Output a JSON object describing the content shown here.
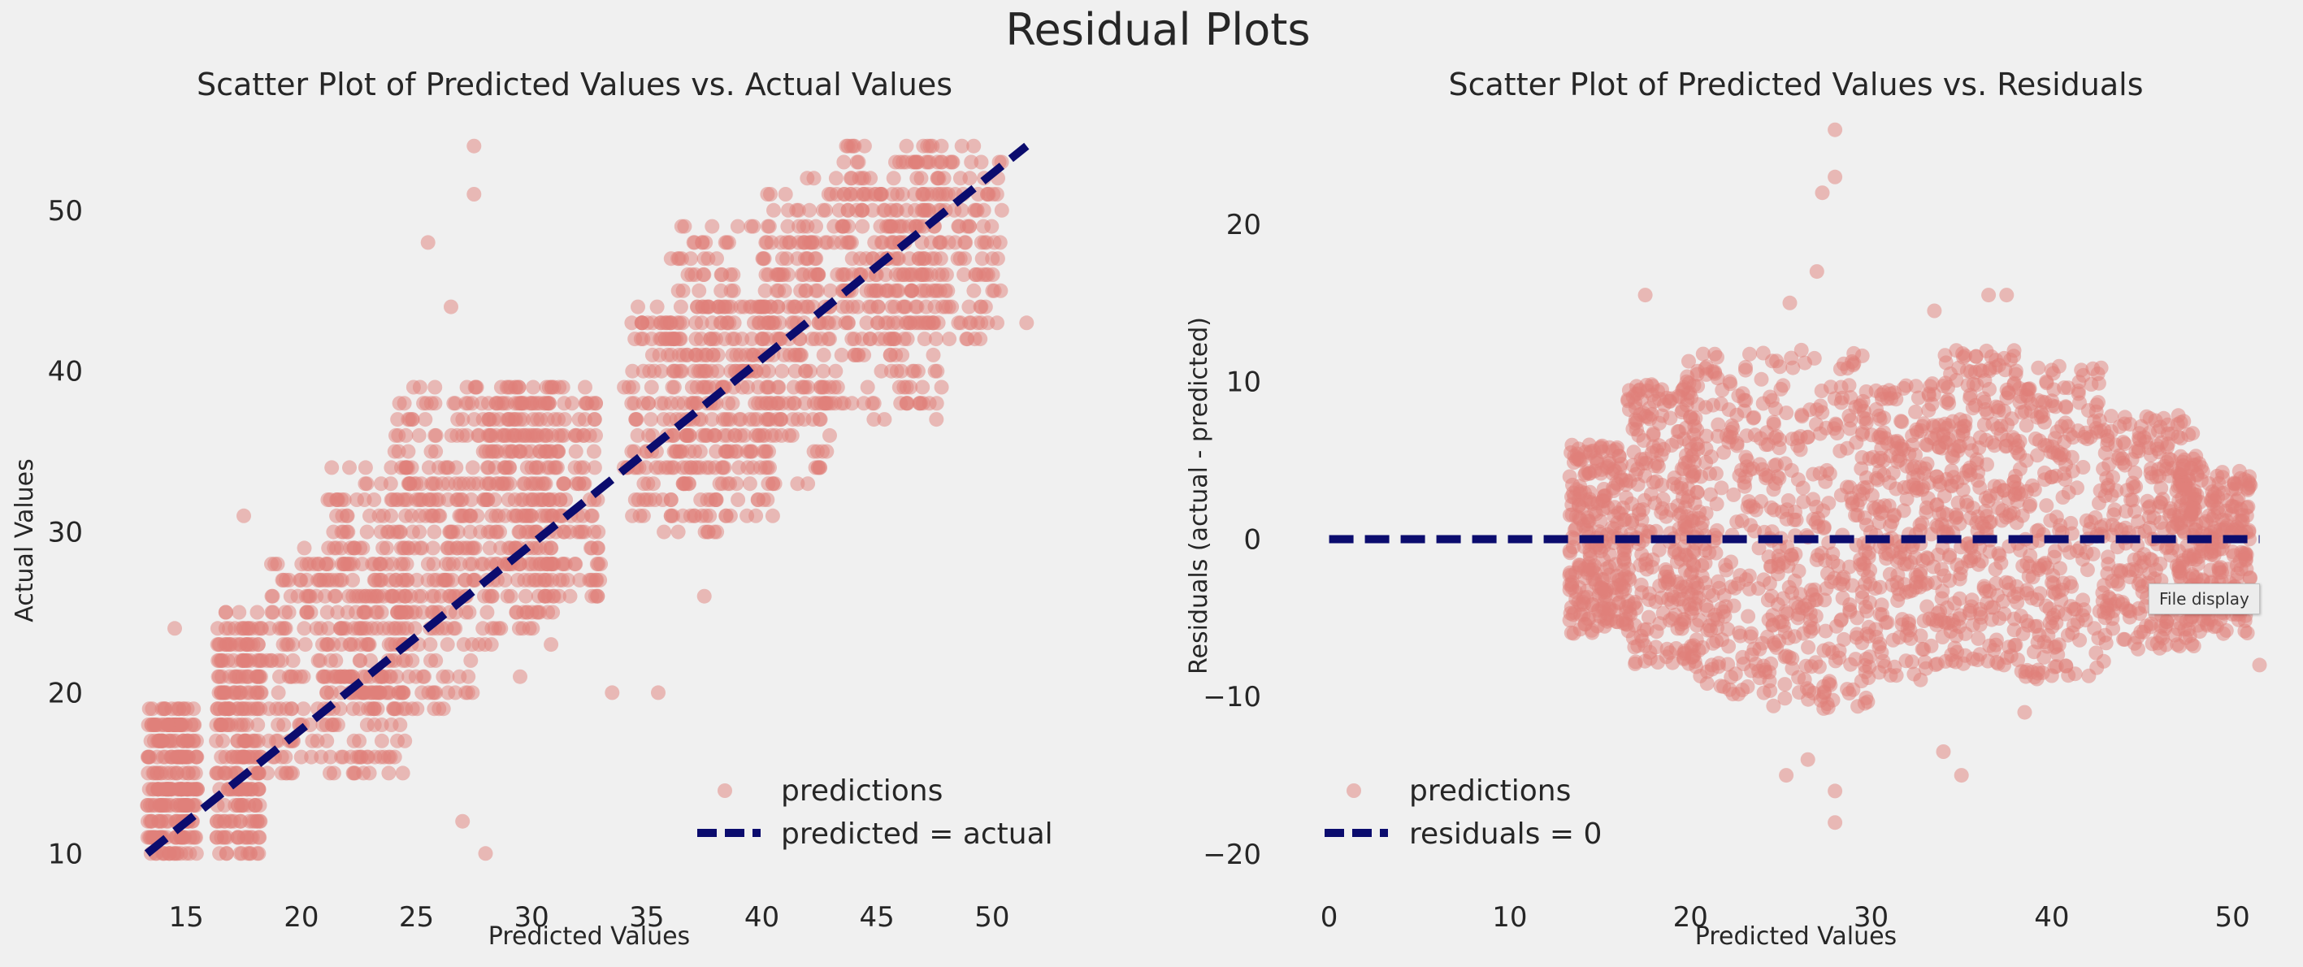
{
  "figure": {
    "title": "Residual Plots",
    "tooltip": "File display"
  },
  "colors": {
    "background": "#f0f0f0",
    "points": "#e0807a",
    "reference_line": "#0b0c6e",
    "text": "#262626"
  },
  "chart_data": [
    {
      "type": "scatter",
      "title": "Scatter Plot of Predicted Values vs. Actual Values",
      "xlabel": "Predicted Values",
      "ylabel": "Actual Values",
      "xlim": [
        11.5,
        53.5
      ],
      "ylim": [
        8.5,
        55.5
      ],
      "xticks": [
        15,
        20,
        25,
        30,
        35,
        40,
        45,
        50
      ],
      "yticks": [
        10,
        20,
        30,
        40,
        50
      ],
      "grid": false,
      "legend_position": "lower-right",
      "legend": [
        "predictions",
        "predicted = actual"
      ],
      "series": [
        {
          "name": "predictions",
          "kind": "points",
          "marker_alpha": 0.5,
          "clusters": [
            {
              "x": [
                13.3,
                15.5
              ],
              "y": [
                10,
                19
              ]
            },
            {
              "x": [
                16.3,
                18.3
              ],
              "y": [
                10,
                25
              ]
            },
            {
              "x": [
                18.5,
                24.5
              ],
              "y": [
                15,
                29
              ]
            },
            {
              "x": [
                21.0,
                27.5
              ],
              "y": [
                19,
                34
              ]
            },
            {
              "x": [
                24.0,
                31.0
              ],
              "y": [
                23,
                39
              ]
            },
            {
              "x": [
                28.0,
                33.0
              ],
              "y": [
                26,
                39
              ]
            },
            {
              "x": [
                34.0,
                40.5
              ],
              "y": [
                30,
                44
              ]
            },
            {
              "x": [
                36.0,
                43.0
              ],
              "y": [
                33,
                49
              ]
            },
            {
              "x": [
                40.0,
                48.0
              ],
              "y": [
                37,
                52
              ]
            },
            {
              "x": [
                43.5,
                50.5
              ],
              "y": [
                42,
                54
              ]
            }
          ],
          "outliers": [
            [
              14.5,
              24
            ],
            [
              27.5,
              54
            ],
            [
              27.5,
              51
            ],
            [
              25.5,
              48
            ],
            [
              26.5,
              44
            ],
            [
              17.5,
              31
            ],
            [
              33.5,
              20
            ],
            [
              35.5,
              20
            ],
            [
              37.5,
              26
            ],
            [
              51.5,
              43
            ],
            [
              29.5,
              21
            ],
            [
              27.0,
              12
            ],
            [
              28.0,
              10
            ]
          ]
        },
        {
          "name": "predicted = actual",
          "kind": "line",
          "style": "dashed",
          "x": [
            13.3,
            51.5
          ],
          "y": [
            10,
            54
          ]
        }
      ]
    },
    {
      "type": "scatter",
      "title": "Scatter Plot of Predicted Values vs. Residuals",
      "xlabel": "Predicted Values",
      "ylabel": "Residuals (actual - predicted)",
      "xlim": [
        -2.5,
        53.5
      ],
      "ylim": [
        -21.5,
        26.5
      ],
      "xticks": [
        0,
        10,
        20,
        30,
        40,
        50
      ],
      "yticks": [
        -20,
        -10,
        0,
        10,
        20
      ],
      "grid": false,
      "legend_position": "lower-left",
      "legend": [
        "predictions",
        "residuals = 0"
      ],
      "series": [
        {
          "name": "predictions",
          "kind": "points",
          "marker_alpha": 0.5,
          "clusters": [
            {
              "x": [
                13.3,
                16.5
              ],
              "y": [
                -6,
                6
              ]
            },
            {
              "x": [
                16.5,
                20.5
              ],
              "y": [
                -8,
                10
              ]
            },
            {
              "x": [
                19.5,
                25.0
              ],
              "y": [
                -10,
                12
              ]
            },
            {
              "x": [
                24.5,
                30.0
              ],
              "y": [
                -11,
                12
              ]
            },
            {
              "x": [
                29.5,
                34.0
              ],
              "y": [
                -9,
                10
              ]
            },
            {
              "x": [
                34.0,
                38.0
              ],
              "y": [
                -8,
                12
              ]
            },
            {
              "x": [
                38.0,
                43.0
              ],
              "y": [
                -9,
                11
              ]
            },
            {
              "x": [
                43.0,
                48.0
              ],
              "y": [
                -7,
                8
              ]
            },
            {
              "x": [
                47.0,
                51.0
              ],
              "y": [
                -6,
                5
              ]
            }
          ],
          "outliers": [
            [
              28.0,
              26
            ],
            [
              28.0,
              23
            ],
            [
              27.3,
              22
            ],
            [
              27.0,
              17
            ],
            [
              25.5,
              15
            ],
            [
              17.5,
              15.5
            ],
            [
              36.5,
              15.5
            ],
            [
              33.5,
              14.5
            ],
            [
              37.5,
              15.5
            ],
            [
              25.3,
              -15
            ],
            [
              26.5,
              -14
            ],
            [
              28.0,
              -16
            ],
            [
              28.0,
              -18
            ],
            [
              34.0,
              -13.5
            ],
            [
              35.0,
              -15
            ],
            [
              38.5,
              -11
            ],
            [
              51.5,
              -8
            ],
            [
              49.5,
              -6
            ]
          ]
        },
        {
          "name": "residuals = 0",
          "kind": "line",
          "style": "dashed",
          "x": [
            0,
            51.5
          ],
          "y": [
            0,
            0
          ]
        }
      ]
    }
  ]
}
